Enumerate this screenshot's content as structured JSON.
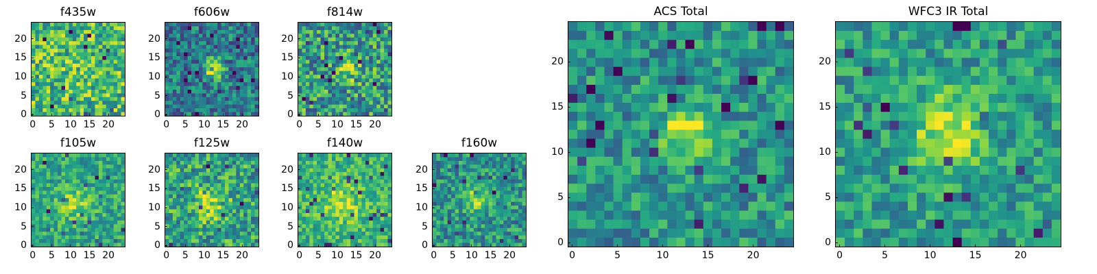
{
  "figure": {
    "panels": [
      {
        "id": "f435w",
        "title": "f435w",
        "size": "small",
        "row": 0,
        "col": 0
      },
      {
        "id": "f606w",
        "title": "f606w",
        "size": "small",
        "row": 0,
        "col": 1
      },
      {
        "id": "f814w",
        "title": "f814w",
        "size": "small",
        "row": 0,
        "col": 2
      },
      {
        "id": "f105w",
        "title": "f105w",
        "size": "small",
        "row": 1,
        "col": 0
      },
      {
        "id": "f125w",
        "title": "f125w",
        "size": "small",
        "row": 1,
        "col": 1
      },
      {
        "id": "f140w",
        "title": "f140w",
        "size": "small",
        "row": 1,
        "col": 2
      },
      {
        "id": "f160w",
        "title": "f160w",
        "size": "small",
        "row": 1,
        "col": 3
      },
      {
        "id": "acs-total",
        "title": "ACS Total",
        "size": "large",
        "row": 0,
        "col": 0
      },
      {
        "id": "wfc3-ir-total",
        "title": "WFC3 IR Total",
        "size": "large",
        "row": 0,
        "col": 1
      }
    ],
    "small_ticks": {
      "x": [
        "0",
        "5",
        "10",
        "15",
        "20"
      ],
      "y": [
        "0",
        "5",
        "10",
        "15",
        "20"
      ]
    },
    "large_ticks": {
      "x": [
        "0",
        "5",
        "10",
        "15",
        "20"
      ],
      "y": [
        "0",
        "5",
        "10",
        "15",
        "20"
      ]
    },
    "grid_size": 25,
    "colormap": "viridis",
    "colors": {
      "dark": "#440154",
      "mid": "#21908d",
      "bright": "#fde725"
    }
  }
}
